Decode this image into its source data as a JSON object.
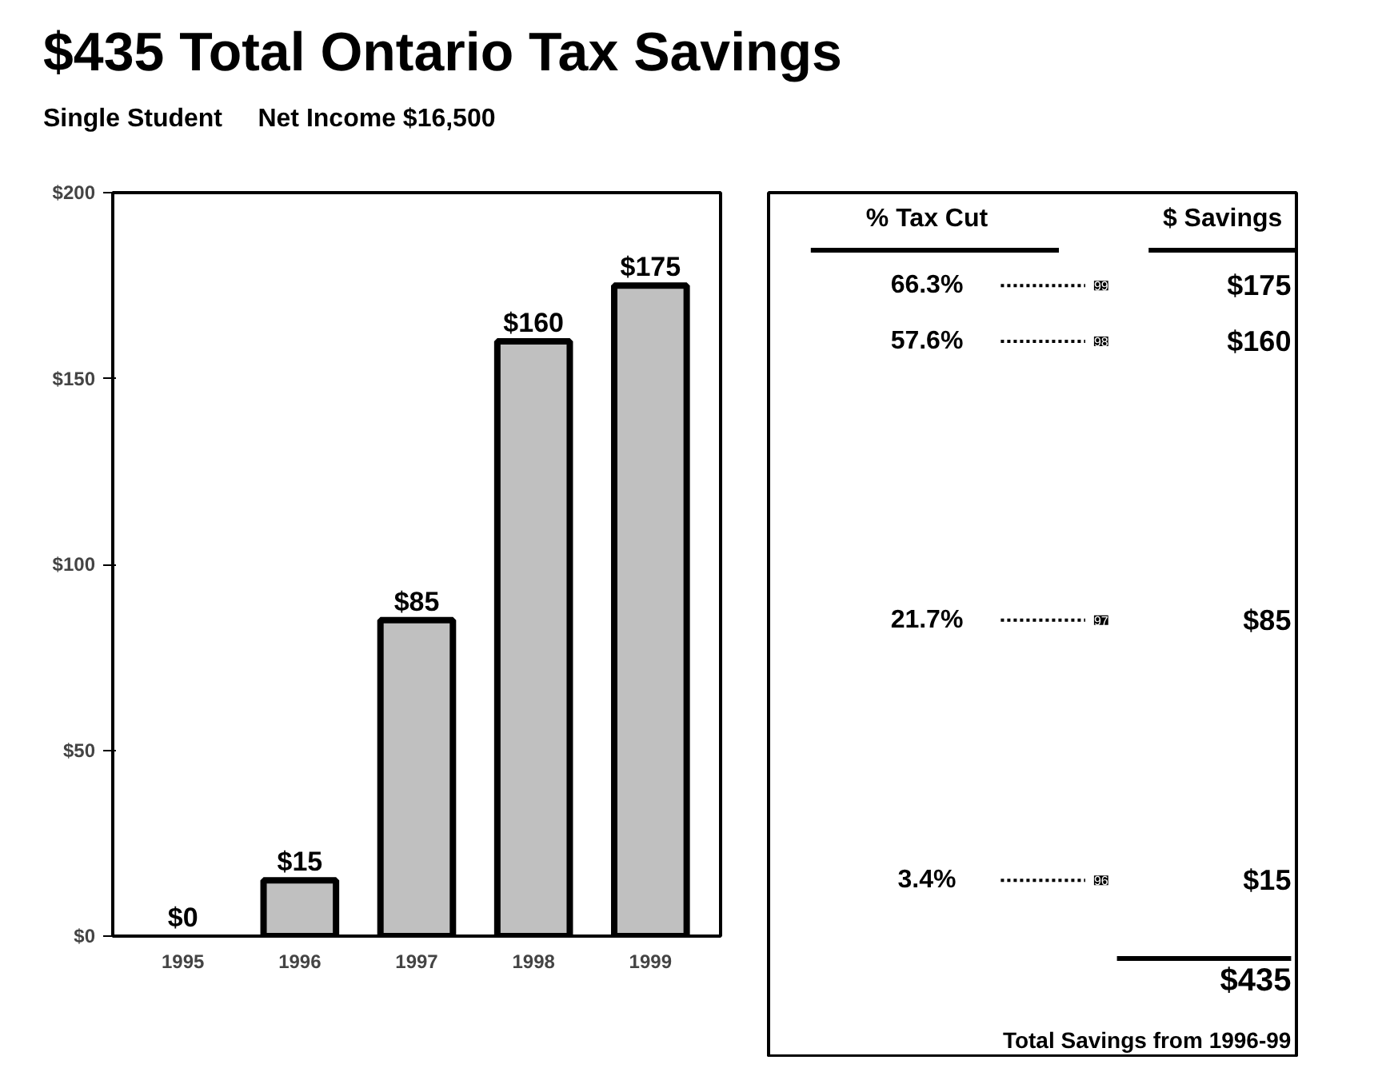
{
  "chart_data": {
    "type": "bar",
    "title": "$435 Total Ontario Tax Savings",
    "subtitle": "Single Student     Net Income $16,500",
    "categories": [
      "1995",
      "1996",
      "1997",
      "1998",
      "1999"
    ],
    "values": [
      0,
      15,
      85,
      160,
      175
    ],
    "color": "#c0c0c0",
    "value_labels": [
      "$0",
      "$15",
      "$85",
      "$160",
      "$175"
    ],
    "ylim": [
      0,
      200
    ],
    "yticks": [
      {
        "value": 0,
        "label": "$0"
      },
      {
        "value": 50,
        "label": "$50"
      },
      {
        "value": 100,
        "label": "$100"
      },
      {
        "value": 150,
        "label": "$150"
      },
      {
        "value": 200,
        "label": "$200"
      }
    ],
    "grid": false,
    "annotations": [
      "% Tax Cut",
      "$ Savings",
      "$435",
      "Total Savings from 1996-99",
      "66.3%",
      "99",
      "$175",
      "57.6%",
      "98",
      "$160",
      "21.7%",
      "97",
      "$85",
      "3.4%",
      "96",
      "$15"
    ]
  }
}
